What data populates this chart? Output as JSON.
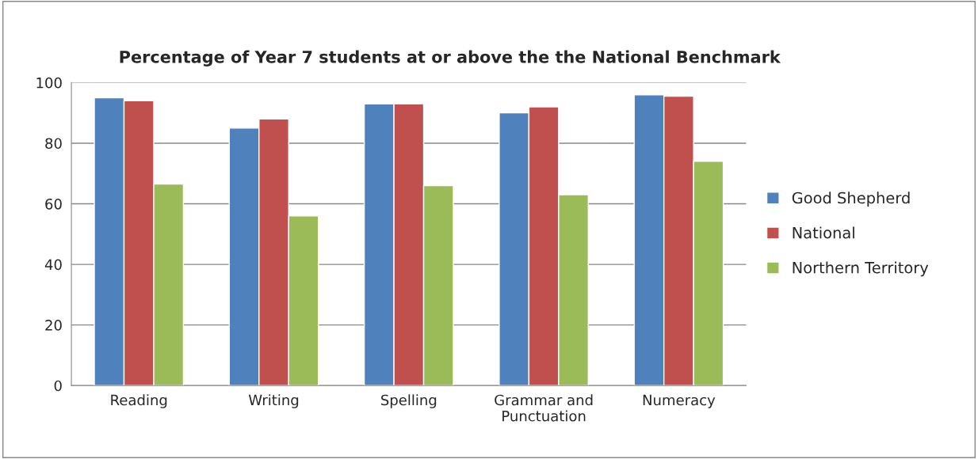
{
  "chart_data": {
    "type": "bar",
    "title": "Percentage of Year 7 students at or above the the National Benchmark",
    "categories": [
      "Reading",
      "Writing",
      "Spelling",
      "Grammar and\nPunctuation",
      "Numeracy"
    ],
    "series": [
      {
        "name": "Good Shepherd",
        "color": "#4f81bd",
        "values": [
          95,
          85,
          93,
          90,
          96
        ]
      },
      {
        "name": "National",
        "color": "#c0504d",
        "values": [
          94,
          88,
          93,
          92,
          95.5
        ]
      },
      {
        "name": "Northern Territory",
        "color": "#9bbb59",
        "values": [
          66.5,
          56,
          66,
          63,
          74
        ]
      }
    ],
    "ylim": [
      0,
      100
    ],
    "yticks": [
      0,
      20,
      40,
      60,
      80,
      100
    ],
    "grid": "y",
    "legend": "right"
  }
}
